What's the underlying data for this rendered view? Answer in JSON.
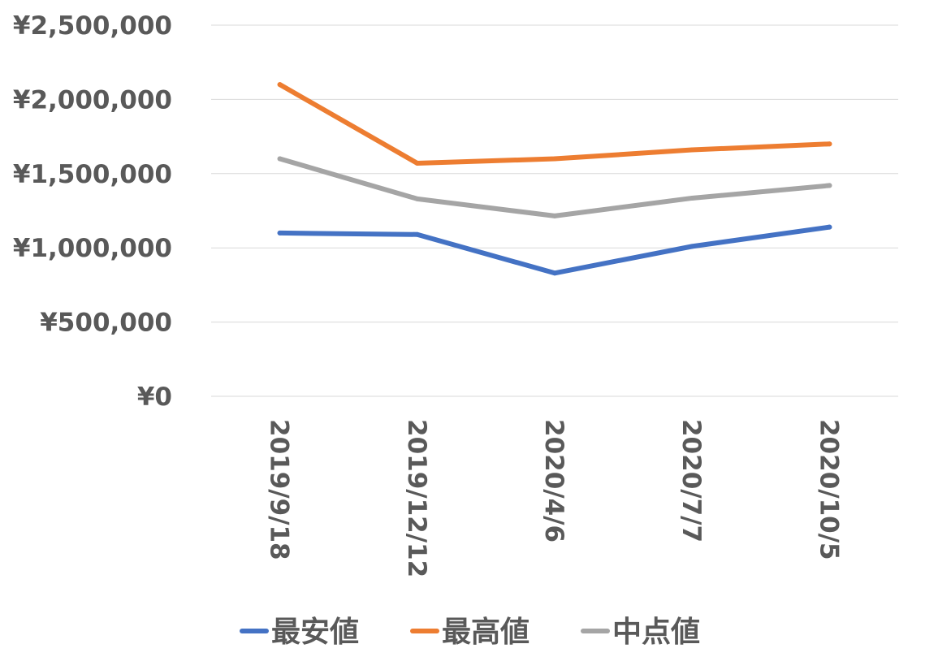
{
  "colors": {
    "text": "#595959",
    "grid": "#d9d9d9",
    "background": "#ffffff"
  },
  "chart_data": {
    "type": "line",
    "title": "",
    "xlabel": "",
    "ylabel": "",
    "categories": [
      "2019/9/18",
      "2019/12/12",
      "2020/4/6",
      "2020/7/7",
      "2020/10/5"
    ],
    "ylim": [
      0,
      2500000
    ],
    "y_ticks": [
      0,
      500000,
      1000000,
      1500000,
      2000000,
      2500000
    ],
    "y_tick_labels": [
      "¥0",
      "¥500,000",
      "¥1,000,000",
      "¥1,500,000",
      "¥2,000,000",
      "¥2,500,000"
    ],
    "x_tick_rotation": "vertical",
    "grid": true,
    "legend_position": "bottom",
    "series": [
      {
        "name": "最安値",
        "color": "#4472c4",
        "values": [
          1100000,
          1090000,
          830000,
          1010000,
          1140000
        ]
      },
      {
        "name": "最高値",
        "color": "#ed7d31",
        "values": [
          2100000,
          1570000,
          1600000,
          1660000,
          1700000
        ]
      },
      {
        "name": "中点値",
        "color": "#a5a5a5",
        "values": [
          1600000,
          1330000,
          1215000,
          1335000,
          1420000
        ]
      }
    ]
  }
}
